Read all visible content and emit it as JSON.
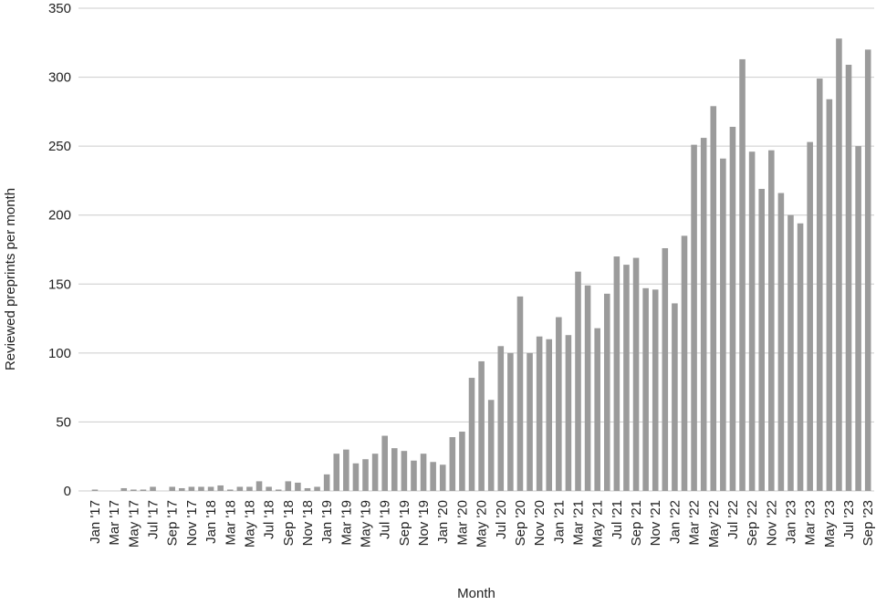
{
  "chart_data": {
    "type": "bar",
    "x_label": "Month",
    "y_label": "Reviewed preprints per month",
    "categories": [
      "Jan '17",
      null,
      "Mar '17",
      null,
      "May '17",
      null,
      "Jul '17",
      null,
      "Sep '17",
      null,
      "Nov '17",
      null,
      "Jan '18",
      null,
      "Mar '18",
      null,
      "May '18",
      null,
      "Jul '18",
      null,
      "Sep '18",
      null,
      "Nov '18",
      null,
      "Jan '19",
      null,
      "Mar '19",
      null,
      "May '19",
      null,
      "Jul '19",
      null,
      "Sep '19",
      null,
      "Nov '19",
      null,
      "Jan '20",
      null,
      "Mar '20",
      null,
      "May '20",
      null,
      "Jul '20",
      null,
      "Sep '20",
      null,
      "Nov '20",
      null,
      "Jan '21",
      null,
      "Mar '21",
      null,
      "May '21",
      null,
      "Jul '21",
      null,
      "Sep '21",
      null,
      "Nov '21",
      null,
      "Jan '22",
      null,
      "Mar '22",
      null,
      "May '22",
      null,
      "Jul '22",
      null,
      "Sep '22",
      null,
      "Nov '22",
      null,
      "Jan '23",
      null,
      "Mar '23",
      null,
      "May '23",
      null,
      "Jul '23",
      null,
      "Sep '23"
    ],
    "values": [
      1,
      0,
      0,
      2,
      1,
      1,
      3,
      0,
      3,
      2,
      3,
      3,
      3,
      4,
      1,
      3,
      3,
      7,
      3,
      1,
      7,
      6,
      2,
      3,
      12,
      27,
      30,
      20,
      23,
      27,
      40,
      31,
      29,
      22,
      27,
      21,
      19,
      39,
      43,
      82,
      94,
      66,
      105,
      100,
      141,
      100,
      112,
      110,
      126,
      113,
      159,
      149,
      118,
      143,
      170,
      164,
      169,
      147,
      146,
      176,
      136,
      185,
      251,
      256,
      279,
      241,
      264,
      313,
      246,
      219,
      247,
      216,
      200,
      194,
      253,
      299,
      284,
      328,
      309,
      250,
      320
    ],
    "color": "#9b9b9b",
    "ylim": [
      0,
      350
    ],
    "yticks": [
      0,
      50,
      100,
      150,
      200,
      250,
      300,
      350
    ],
    "grid": true
  }
}
